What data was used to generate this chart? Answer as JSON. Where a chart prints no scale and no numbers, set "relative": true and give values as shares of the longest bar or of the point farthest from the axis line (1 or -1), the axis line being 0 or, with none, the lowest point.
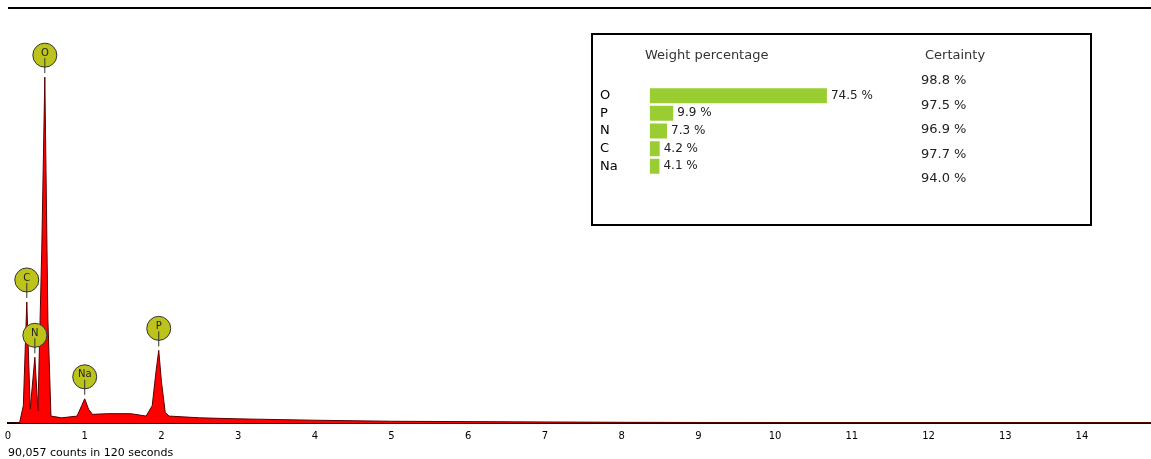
{
  "chart_data": [
    {
      "type": "area",
      "relative": true,
      "tick_labels": "x",
      "color": "#ff0000",
      "x": [
        0,
        0.15,
        0.2,
        0.245,
        0.29,
        0.35,
        0.39,
        0.44,
        0.48,
        0.52,
        0.56,
        0.7,
        0.9,
        0.96,
        1.0,
        1.05,
        1.1,
        1.3,
        1.6,
        1.8,
        1.88,
        1.93,
        1.965,
        2.0,
        2.05,
        2.1,
        2.5,
        3,
        4,
        5,
        6,
        7,
        8,
        10,
        12,
        14.9
      ],
      "values": [
        0,
        0,
        0.05,
        0.35,
        0.04,
        0.19,
        0.035,
        0.5,
        1,
        0.3,
        0.02,
        0.015,
        0.02,
        0.05,
        0.07,
        0.04,
        0.025,
        0.027,
        0.027,
        0.02,
        0.05,
        0.15,
        0.21,
        0.12,
        0.03,
        0.02,
        0.015,
        0.012,
        0.008,
        0.005,
        0.004,
        0.003,
        0.002,
        0.001,
        0.001,
        0.001
      ],
      "xlim": [
        0,
        14.9
      ],
      "xticks": [
        0,
        1,
        2,
        3,
        4,
        5,
        6,
        7,
        8,
        9,
        10,
        11,
        12,
        13,
        14
      ],
      "annotations": [
        {
          "text": "O",
          "x": 0.48,
          "y": 1
        },
        {
          "text": "C",
          "x": 0.245,
          "y": 0.35
        },
        {
          "text": "N",
          "x": 0.35,
          "y": 0.19
        },
        {
          "text": "Na",
          "x": 1.0,
          "y": 0.07
        },
        {
          "text": "P",
          "x": 1.965,
          "y": 0.21
        },
        "90,057 counts in 120 seconds"
      ]
    },
    {
      "type": "bar",
      "orientation": "horizontal",
      "title": "Weight percentage",
      "color": "#9acd32",
      "categories": [
        "O",
        "P",
        "N",
        "C",
        "Na"
      ],
      "values": [
        74.5,
        9.9,
        7.3,
        4.2,
        4.1
      ],
      "value_labels": [
        "74.5 %",
        "9.9 %",
        "7.3 %",
        "4.2 %",
        "4.1 %"
      ]
    },
    {
      "type": "other",
      "title": "Certainty",
      "annotations": [
        "98.8 %",
        "97.5 %",
        "96.9 %",
        "97.7 %",
        "94.0 %"
      ]
    }
  ]
}
